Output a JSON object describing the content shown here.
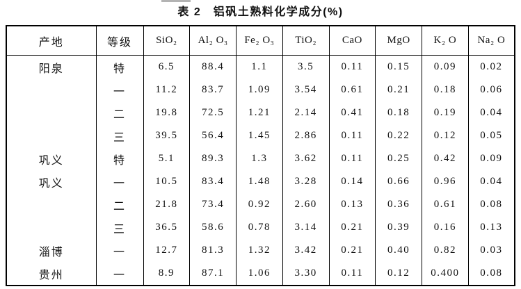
{
  "title": "表 2　铝矾土熟料化学成分(%)",
  "table": {
    "columns": [
      "产地",
      "等级",
      "SiO₂",
      "Al₂ O₃",
      "Fe₂ O₃",
      "TiO₂",
      "CaO",
      "MgO",
      "K₂ O",
      "Na₂ O"
    ],
    "rows": [
      [
        "阳泉",
        "特",
        "6.5",
        "88.4",
        "1.1",
        "3.5",
        "0.11",
        "0.15",
        "0.09",
        "0.02"
      ],
      [
        "",
        "一",
        "11.2",
        "83.7",
        "1.09",
        "3.54",
        "0.61",
        "0.21",
        "0.18",
        "0.06"
      ],
      [
        "",
        "二",
        "19.8",
        "72.5",
        "1.21",
        "2.14",
        "0.41",
        "0.18",
        "0.19",
        "0.04"
      ],
      [
        "",
        "三",
        "39.5",
        "56.4",
        "1.45",
        "2.86",
        "0.11",
        "0.22",
        "0.12",
        "0.05"
      ],
      [
        "巩义",
        "特",
        "5.1",
        "89.3",
        "1.3",
        "3.62",
        "0.11",
        "0.25",
        "0.42",
        "0.09"
      ],
      [
        "巩义",
        "一",
        "10.5",
        "83.4",
        "1.48",
        "3.28",
        "0.14",
        "0.66",
        "0.96",
        "0.04"
      ],
      [
        "",
        "二",
        "21.8",
        "73.4",
        "0.92",
        "2.60",
        "0.13",
        "0.36",
        "0.61",
        "0.08"
      ],
      [
        "",
        "三",
        "36.5",
        "58.6",
        "0.78",
        "3.14",
        "0.21",
        "0.39",
        "0.16",
        "0.13"
      ],
      [
        "淄博",
        "一",
        "12.7",
        "81.3",
        "1.32",
        "3.42",
        "0.21",
        "0.40",
        "0.82",
        "0.03"
      ],
      [
        "贵州",
        "一",
        "8.9",
        "87.1",
        "1.06",
        "3.30",
        "0.11",
        "0.12",
        "0.400",
        "0.08"
      ]
    ]
  }
}
